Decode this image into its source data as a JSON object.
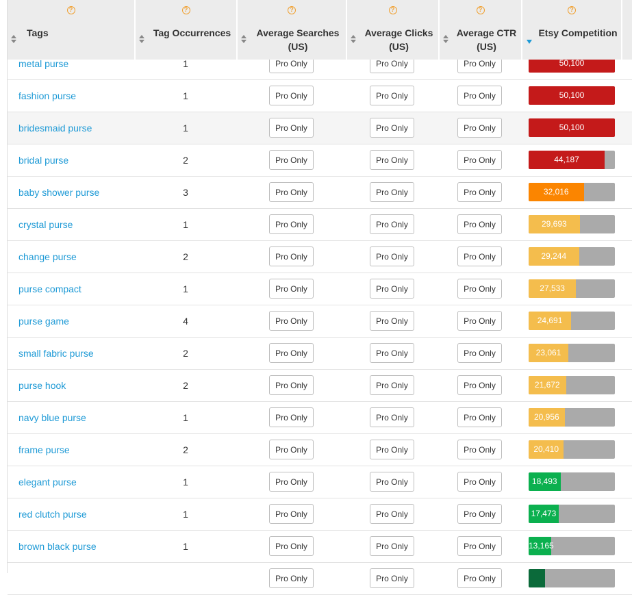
{
  "columns": [
    {
      "label": "Tags"
    },
    {
      "label": "Tag Occurrences"
    },
    {
      "label": "Average Searches (US)"
    },
    {
      "label": "Average Clicks (US)"
    },
    {
      "label": "Average CTR (US)"
    },
    {
      "label": "Etsy Competition"
    }
  ],
  "help_glyph": "?",
  "pro_label": "Pro Only",
  "competition_scale_max": 50100,
  "colors": {
    "red": "#c41a1a",
    "orange": "#fb8500",
    "yellow": "#f4bd4d",
    "green": "#0bb04f",
    "darkgreen": "#0b6a3a",
    "track": "#aaaaaa",
    "link": "#1e9ad6"
  },
  "rows": [
    {
      "tag": "metal purse",
      "occurrences": "1",
      "competition": 50100,
      "competition_label": "50,100",
      "color": "red"
    },
    {
      "tag": "fashion purse",
      "occurrences": "1",
      "competition": 50100,
      "competition_label": "50,100",
      "color": "red"
    },
    {
      "tag": "bridesmaid purse",
      "occurrences": "1",
      "competition": 50100,
      "competition_label": "50,100",
      "color": "red"
    },
    {
      "tag": "bridal purse",
      "occurrences": "2",
      "competition": 44187,
      "competition_label": "44,187",
      "color": "red"
    },
    {
      "tag": "baby shower purse",
      "occurrences": "3",
      "competition": 32016,
      "competition_label": "32,016",
      "color": "orange"
    },
    {
      "tag": "crystal purse",
      "occurrences": "1",
      "competition": 29693,
      "competition_label": "29,693",
      "color": "yellow"
    },
    {
      "tag": "change purse",
      "occurrences": "2",
      "competition": 29244,
      "competition_label": "29,244",
      "color": "yellow"
    },
    {
      "tag": "purse compact",
      "occurrences": "1",
      "competition": 27533,
      "competition_label": "27,533",
      "color": "yellow"
    },
    {
      "tag": "purse game",
      "occurrences": "4",
      "competition": 24691,
      "competition_label": "24,691",
      "color": "yellow"
    },
    {
      "tag": "small fabric purse",
      "occurrences": "2",
      "competition": 23061,
      "competition_label": "23,061",
      "color": "yellow"
    },
    {
      "tag": "purse hook",
      "occurrences": "2",
      "competition": 21672,
      "competition_label": "21,672",
      "color": "yellow"
    },
    {
      "tag": "navy blue purse",
      "occurrences": "1",
      "competition": 20956,
      "competition_label": "20,956",
      "color": "yellow"
    },
    {
      "tag": "frame purse",
      "occurrences": "2",
      "competition": 20410,
      "competition_label": "20,410",
      "color": "yellow"
    },
    {
      "tag": "elegant purse",
      "occurrences": "1",
      "competition": 18493,
      "competition_label": "18,493",
      "color": "green"
    },
    {
      "tag": "red clutch purse",
      "occurrences": "1",
      "competition": 17473,
      "competition_label": "17,473",
      "color": "green"
    },
    {
      "tag": "brown black purse",
      "occurrences": "1",
      "competition": 13165,
      "competition_label": "13,165",
      "color": "green"
    },
    {
      "tag": "",
      "occurrences": "",
      "competition": 9500,
      "competition_label": "",
      "color": "darkgreen"
    }
  ]
}
